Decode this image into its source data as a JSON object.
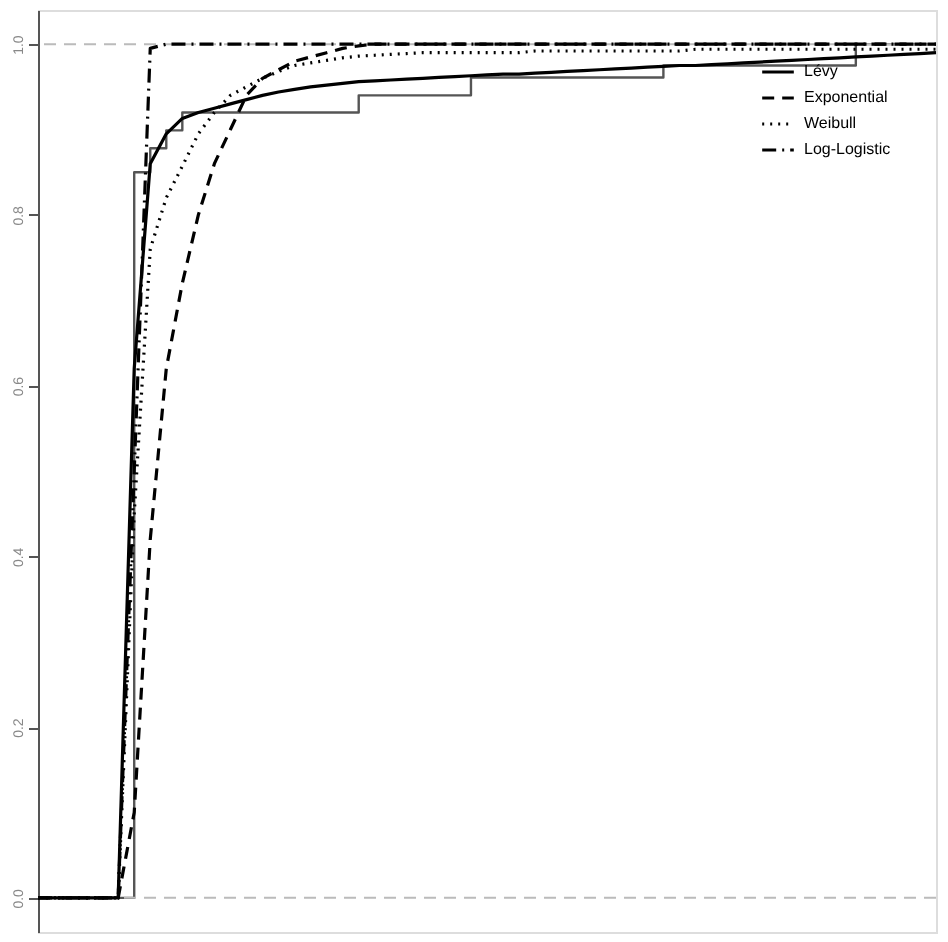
{
  "chart_data": {
    "type": "line",
    "categories": [
      null,
      null,
      null,
      null,
      null,
      null,
      null,
      null,
      null,
      null,
      null,
      null,
      null,
      null,
      null,
      null,
      null,
      null,
      null,
      null,
      null,
      null,
      null,
      null,
      null,
      null,
      null,
      null,
      null,
      null,
      null,
      null,
      null,
      null,
      null,
      null,
      null,
      null,
      null,
      null,
      null,
      null,
      null,
      null,
      null,
      null,
      null,
      null,
      null,
      null,
      null,
      null,
      null,
      null,
      null,
      null,
      null
    ],
    "series": [
      {
        "type": "step",
        "color": "#555555",
        "line_style": "solid",
        "values": [
          0,
          0,
          0,
          0,
          0,
          0,
          0.85,
          0.878,
          0.899,
          0.92,
          0.92,
          0.92,
          0.92,
          0.92,
          0.92,
          0.92,
          0.92,
          0.92,
          0.92,
          0.92,
          0.94,
          0.94,
          0.94,
          0.94,
          0.94,
          0.94,
          0.94,
          0.961,
          0.961,
          0.961,
          0.961,
          0.961,
          0.961,
          0.961,
          0.961,
          0.961,
          0.961,
          0.961,
          0.961,
          0.975,
          0.975,
          0.975,
          0.975,
          0.975,
          0.975,
          0.975,
          0.975,
          0.975,
          0.975,
          0.975,
          0.975,
          1,
          1,
          1,
          1,
          1,
          1
        ]
      },
      {
        "name": "Lévy",
        "color": "#000000",
        "line_style": "solid",
        "values": [
          0,
          0,
          0,
          0,
          0,
          0,
          0.62,
          0.86,
          0.895,
          0.913,
          0.92,
          0.925,
          0.93,
          0.935,
          0.94,
          0.944,
          0.947,
          0.95,
          0.952,
          0.954,
          0.956,
          0.957,
          0.958,
          0.959,
          0.96,
          0.961,
          0.962,
          0.963,
          0.964,
          0.965,
          0.965,
          0.966,
          0.967,
          0.968,
          0.969,
          0.97,
          0.971,
          0.972,
          0.973,
          0.974,
          0.975,
          0.975,
          0.976,
          0.977,
          0.978,
          0.979,
          0.98,
          0.981,
          0.982,
          0.983,
          0.984,
          0.985,
          0.986,
          0.987,
          0.988,
          0.989,
          0.99
        ]
      },
      {
        "name": "Exponential",
        "color": "#000000",
        "line_style": "dashed",
        "values": [
          0,
          0,
          0,
          0,
          0,
          0,
          0.1,
          0.42,
          0.62,
          0.72,
          0.8,
          0.86,
          0.9,
          0.94,
          0.96,
          0.97,
          0.98,
          0.985,
          0.99,
          0.995,
          0.998,
          1,
          1,
          1,
          1,
          1,
          1,
          1,
          1,
          1,
          1,
          1,
          1,
          1,
          1,
          1,
          1,
          1,
          1,
          1,
          1,
          1,
          1,
          1,
          1,
          1,
          1,
          1,
          1,
          1,
          1,
          1,
          1,
          1,
          1,
          1,
          1
        ]
      },
      {
        "name": "Weibull",
        "color": "#000000",
        "line_style": "dotted",
        "values": [
          0,
          0,
          0,
          0,
          0,
          0,
          0.45,
          0.76,
          0.82,
          0.857,
          0.895,
          0.92,
          0.94,
          0.95,
          0.96,
          0.968,
          0.975,
          0.978,
          0.981,
          0.984,
          0.986,
          0.987,
          0.988,
          0.989,
          0.99,
          0.99,
          0.99,
          0.99,
          0.99,
          0.99,
          0.99,
          0.992,
          0.992,
          0.992,
          0.992,
          0.992,
          0.992,
          0.992,
          0.992,
          0.992,
          0.992,
          0.994,
          0.994,
          0.994,
          0.994,
          0.994,
          0.994,
          0.994,
          0.994,
          0.994,
          0.994,
          0.994,
          0.994,
          0.994,
          0.994,
          0.994,
          0.994
        ]
      },
      {
        "name": "Log-Logistic",
        "color": "#000000",
        "line_style": "dashdot",
        "values": [
          0,
          0,
          0,
          0,
          0,
          0,
          0.5,
          0.995,
          1,
          1,
          1,
          1,
          1,
          1,
          1,
          1,
          1,
          1,
          1,
          1,
          1,
          1,
          1,
          1,
          1,
          1,
          1,
          1,
          1,
          1,
          1,
          1,
          1,
          1,
          1,
          1,
          1,
          1,
          1,
          1,
          1,
          1,
          1,
          1,
          1,
          1,
          1,
          1,
          1,
          1,
          1,
          1,
          1,
          1,
          1,
          1,
          1
        ]
      }
    ],
    "ylim": [
      -0.04,
      1.04
    ],
    "yticks": [
      {
        "value": 0,
        "label": "0.0"
      },
      {
        "value": 0.2,
        "label": "0.2"
      },
      {
        "value": 0.4,
        "label": "0.4"
      },
      {
        "value": 0.6,
        "label": "0.6"
      },
      {
        "value": 0.8,
        "label": "0.8"
      },
      {
        "value": 1,
        "label": "1.0"
      }
    ],
    "tick_labels": "y",
    "ref_lines": [
      {
        "axis": "y",
        "value": 0,
        "color": "#bbbbbb",
        "line_style": "dashed"
      },
      {
        "axis": "y",
        "value": 1,
        "color": "#bbbbbb",
        "line_style": "dashed"
      }
    ],
    "grid": false,
    "legend": "top right"
  }
}
